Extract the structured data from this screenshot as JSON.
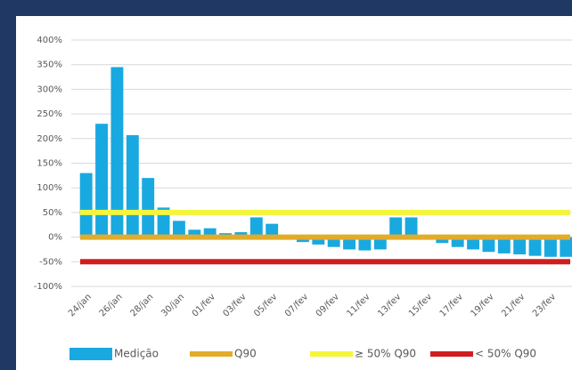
{
  "chart_data": {
    "type": "bar",
    "categories": [
      "24/jan",
      null,
      "26/jan",
      null,
      "28/jan",
      null,
      "30/jan",
      null,
      "01/fev",
      null,
      "03/fev",
      null,
      "05/fev",
      null,
      "07/fev",
      null,
      "09/fev",
      null,
      "11/fev",
      null,
      "13/fev",
      null,
      "15/fev",
      null,
      "17/fev",
      null,
      "19/fev",
      null,
      "21/fev",
      null,
      "23/fev",
      null
    ],
    "series": [
      {
        "name": "Medição",
        "color": "#18a9e1",
        "values": [
          130,
          230,
          345,
          207,
          120,
          60,
          33,
          15,
          18,
          8,
          10,
          40,
          27,
          -5,
          -10,
          -15,
          -20,
          -25,
          -27,
          -25,
          40,
          40,
          -5,
          -12,
          -20,
          -25,
          -30,
          -33,
          -35,
          -38,
          -40,
          -40
        ]
      }
    ],
    "reference_lines": [
      {
        "name": "Q90",
        "value": 0,
        "color": "#e3ab2a"
      },
      {
        "name": "≥ 50% Q90",
        "value": 50,
        "color": "#f5f53a"
      },
      {
        "name": "< 50% Q90",
        "value": -50,
        "color": "#d01e1e"
      }
    ],
    "ylim": [
      -100,
      400
    ],
    "yticks": [
      {
        "value": -100,
        "label": "-100%"
      },
      {
        "value": -50,
        "label": "-50%"
      },
      {
        "value": 0,
        "label": "0%"
      },
      {
        "value": 50,
        "label": "50%"
      },
      {
        "value": 100,
        "label": "100%"
      },
      {
        "value": 150,
        "label": "150%"
      },
      {
        "value": 200,
        "label": "200%"
      },
      {
        "value": 250,
        "label": "250%"
      },
      {
        "value": 300,
        "label": "300%"
      },
      {
        "value": 350,
        "label": "350%"
      },
      {
        "value": 400,
        "label": "400%"
      }
    ],
    "grid": true
  }
}
